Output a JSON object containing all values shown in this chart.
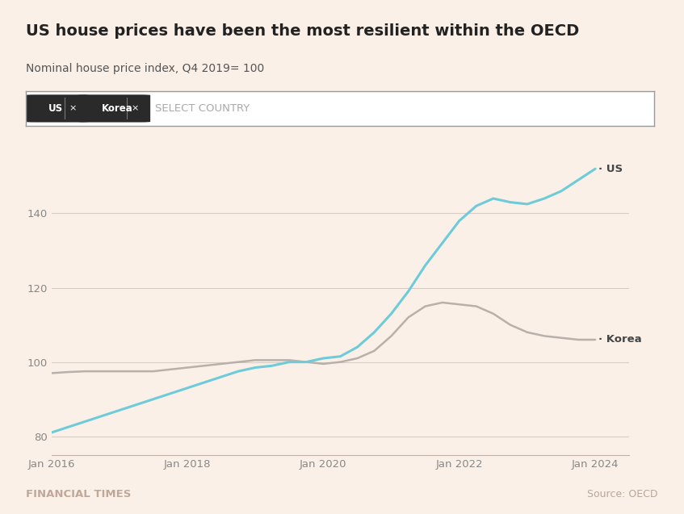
{
  "title": "US house prices have been the most resilient within the OECD",
  "subtitle": "Nominal house price index, Q4 2019= 100",
  "background_color": "#faf0e8",
  "plot_bg_color": "#faf0e8",
  "title_fontsize": 14,
  "subtitle_fontsize": 10,
  "us_color": "#6ecbd9",
  "korea_color": "#b8b0aa",
  "us_label": "· US",
  "korea_label": "· Korea",
  "ft_label": "FINANCIAL TIMES",
  "source_label": "Source: OECD",
  "ft_color": "#c0a898",
  "source_color": "#b8a898",
  "xlim_start": 2016.0,
  "xlim_end": 2024.5,
  "ylim": [
    75,
    158
  ],
  "yticks": [
    80,
    100,
    120,
    140
  ],
  "xtick_years": [
    2016,
    2018,
    2020,
    2022,
    2024
  ],
  "selector_text": "SELECT COUNTRY",
  "selector_tags": [
    "US",
    "Korea"
  ],
  "us_data": {
    "years": [
      2016.0,
      2016.25,
      2016.5,
      2016.75,
      2017.0,
      2017.25,
      2017.5,
      2017.75,
      2018.0,
      2018.25,
      2018.5,
      2018.75,
      2019.0,
      2019.25,
      2019.5,
      2019.75,
      2020.0,
      2020.25,
      2020.5,
      2020.75,
      2021.0,
      2021.25,
      2021.5,
      2021.75,
      2022.0,
      2022.25,
      2022.5,
      2022.75,
      2023.0,
      2023.25,
      2023.5,
      2023.75,
      2024.0
    ],
    "values": [
      81.0,
      82.5,
      84.0,
      85.5,
      87.0,
      88.5,
      90.0,
      91.5,
      93.0,
      94.5,
      96.0,
      97.5,
      98.5,
      99.0,
      100.0,
      100.0,
      101.0,
      101.5,
      104.0,
      108.0,
      113.0,
      119.0,
      126.0,
      132.0,
      138.0,
      142.0,
      144.0,
      143.0,
      142.5,
      144.0,
      146.0,
      149.0,
      152.0
    ]
  },
  "korea_data": {
    "years": [
      2016.0,
      2016.25,
      2016.5,
      2016.75,
      2017.0,
      2017.25,
      2017.5,
      2017.75,
      2018.0,
      2018.25,
      2018.5,
      2018.75,
      2019.0,
      2019.25,
      2019.5,
      2019.75,
      2020.0,
      2020.25,
      2020.5,
      2020.75,
      2021.0,
      2021.25,
      2021.5,
      2021.75,
      2022.0,
      2022.25,
      2022.5,
      2022.75,
      2023.0,
      2023.25,
      2023.5,
      2023.75,
      2024.0
    ],
    "values": [
      97.0,
      97.3,
      97.5,
      97.5,
      97.5,
      97.5,
      97.5,
      98.0,
      98.5,
      99.0,
      99.5,
      100.0,
      100.5,
      100.5,
      100.5,
      100.0,
      99.5,
      100.0,
      101.0,
      103.0,
      107.0,
      112.0,
      115.0,
      116.0,
      115.5,
      115.0,
      113.0,
      110.0,
      108.0,
      107.0,
      106.5,
      106.0,
      106.0
    ]
  }
}
